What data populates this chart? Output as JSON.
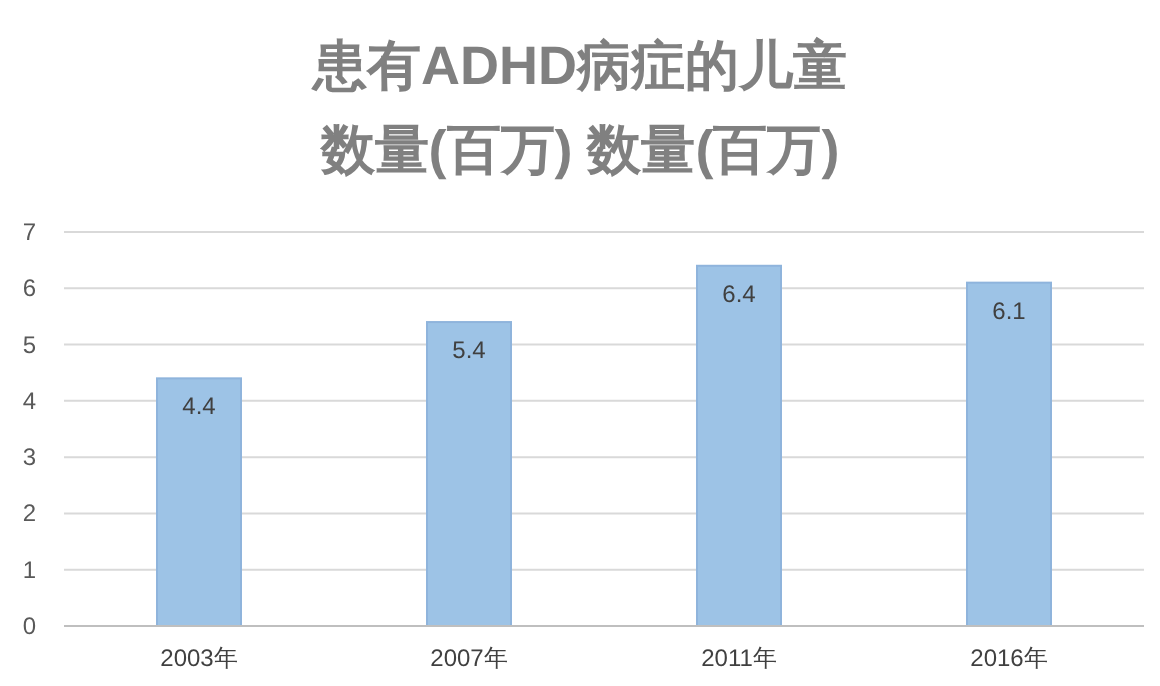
{
  "chart_data": {
    "type": "bar",
    "title": "患有ADHD病症的儿童",
    "subtitle": "数量(百万) 数量(百万)",
    "categories": [
      "2003年",
      "2007年",
      "2011年",
      "2016年"
    ],
    "values": [
      4.4,
      5.4,
      6.4,
      6.1
    ],
    "color": "#9dc3e6",
    "data_labels": true,
    "ylim": [
      0,
      7
    ],
    "yticks": [
      0,
      1,
      2,
      3,
      4,
      5,
      6,
      7
    ],
    "grid": "y"
  }
}
